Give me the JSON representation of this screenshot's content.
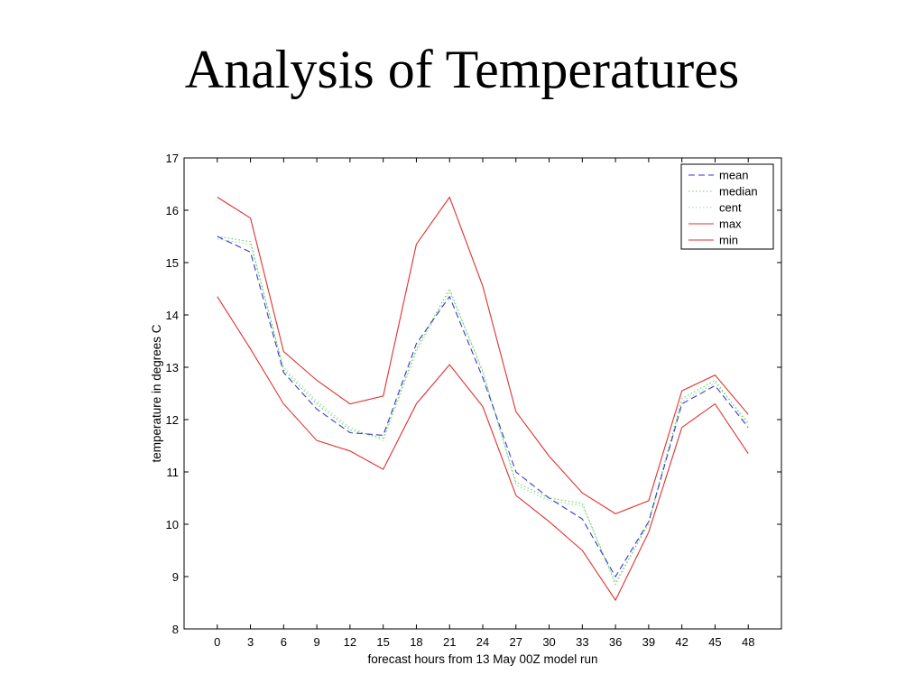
{
  "slide": {
    "title": "Analysis of Temperatures"
  },
  "chart_data": {
    "type": "line",
    "title": "",
    "xlabel": "forecast hours from 13 May 00Z model run",
    "ylabel": "temperature in degrees C",
    "x": [
      0,
      3,
      6,
      9,
      12,
      15,
      18,
      21,
      24,
      27,
      30,
      33,
      36,
      39,
      42,
      45,
      48
    ],
    "xlim": [
      -3,
      51
    ],
    "ylim": [
      8,
      17
    ],
    "yticks": [
      8,
      9,
      10,
      11,
      12,
      13,
      14,
      15,
      16,
      17
    ],
    "grid": false,
    "legend_position": "top-right",
    "series": [
      {
        "name": "mean",
        "color": "#3a3acc",
        "style": "dashed",
        "values": [
          15.5,
          15.2,
          12.9,
          12.2,
          11.75,
          11.7,
          13.45,
          14.35,
          12.8,
          11.0,
          10.5,
          10.1,
          9.0,
          10.05,
          12.3,
          12.65,
          11.85
        ]
      },
      {
        "name": "median",
        "color": "#66cc66",
        "style": "dotted",
        "values": [
          15.5,
          15.4,
          12.95,
          12.3,
          11.8,
          11.65,
          13.35,
          14.5,
          12.9,
          10.8,
          10.5,
          10.4,
          8.85,
          10.05,
          12.4,
          12.75,
          11.9
        ]
      },
      {
        "name": "cent",
        "color": "#99dd99",
        "style": "dotted",
        "values": [
          15.45,
          15.35,
          13.0,
          12.35,
          11.85,
          11.6,
          13.3,
          14.45,
          12.95,
          10.75,
          10.45,
          10.35,
          8.9,
          10.0,
          12.35,
          12.7,
          11.95
        ]
      },
      {
        "name": "max",
        "color": "#e03030",
        "style": "solid",
        "values": [
          16.25,
          15.85,
          13.3,
          12.75,
          12.3,
          12.45,
          15.35,
          16.25,
          14.55,
          12.15,
          11.3,
          10.6,
          10.2,
          10.45,
          12.55,
          12.85,
          12.1
        ]
      },
      {
        "name": "min",
        "color": "#e03030",
        "style": "solid",
        "values": [
          14.35,
          13.35,
          12.3,
          11.6,
          11.4,
          11.05,
          12.3,
          13.05,
          12.25,
          10.55,
          10.05,
          9.5,
          8.55,
          9.85,
          11.85,
          12.3,
          11.35
        ]
      }
    ]
  }
}
